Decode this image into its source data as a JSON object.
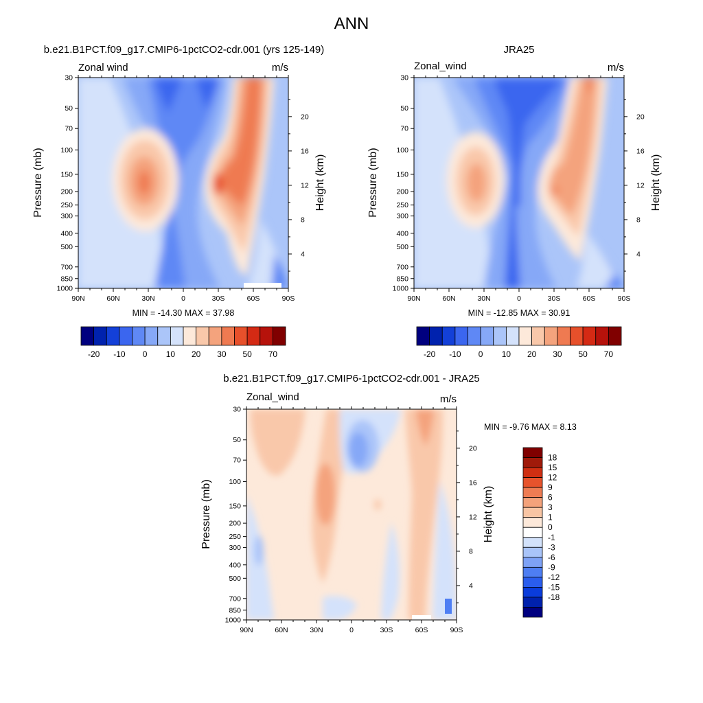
{
  "figure": {
    "title": "ANN"
  },
  "colors": {
    "full_palette": [
      "#00007f",
      "#0022ae",
      "#1340d8",
      "#3b66ef",
      "#5f88f5",
      "#86a8f7",
      "#abc5f9",
      "#d4e2fb",
      "#fde9da",
      "#f9c8aa",
      "#f4a37d",
      "#ef7a51",
      "#e7502b",
      "#d42a14",
      "#b6120b",
      "#800000"
    ],
    "diff_palette": [
      "#000080",
      "#0021ad",
      "#0a3cdb",
      "#2a5ded",
      "#4e7ef3",
      "#7ea2f6",
      "#a9c4f9",
      "#d3e2fb",
      "#ffffff",
      "#fde9da",
      "#f8c5a4",
      "#f3a27b",
      "#ee7c53",
      "#e7532c",
      "#cf2f12",
      "#a01a0a",
      "#800000"
    ]
  },
  "chart_data": [
    {
      "type": "heatmap",
      "title": "b.e21.B1PCT.f09_g17.CMIP6-1pctCO2-cdr.001 (yrs 125-149)",
      "variable_label": "Zonal wind",
      "units": "m/s",
      "xlabel": "",
      "ylabel": "Pressure (mb)",
      "ylabel_right": "Height (km)",
      "x_ticks": [
        "90N",
        "60N",
        "30N",
        "0",
        "30S",
        "60S",
        "90S"
      ],
      "x_tick_values": [
        90,
        60,
        30,
        0,
        -30,
        -60,
        -90
      ],
      "y_ticks": [
        "30",
        "50",
        "70",
        "100",
        "150",
        "200",
        "250",
        "300",
        "400",
        "500",
        "700",
        "850",
        "1000"
      ],
      "y_tick_values": [
        30,
        50,
        70,
        100,
        150,
        200,
        250,
        300,
        400,
        500,
        700,
        850,
        1000
      ],
      "height_ticks": [
        "20",
        "16",
        "12",
        "8",
        "4"
      ],
      "height_tick_values": [
        20,
        16,
        12,
        8,
        4
      ],
      "ylim": [
        1000,
        30
      ],
      "xlim": [
        90,
        -90
      ],
      "min_max_text": "MIN = -14.30  MAX =  37.98",
      "min": -14.3,
      "max": 37.98,
      "colorbar_labels": [
        "-20",
        "-10",
        "0",
        "10",
        "20",
        "30",
        "50",
        "70"
      ],
      "colorbar_orientation": "horizontal"
    },
    {
      "type": "heatmap",
      "title": "JRA25",
      "variable_label": "Zonal_wind",
      "units": "m/s",
      "xlabel": "",
      "ylabel": "Pressure (mb)",
      "ylabel_right": "Height (km)",
      "x_ticks": [
        "90N",
        "60N",
        "30N",
        "0",
        "30S",
        "60S",
        "90S"
      ],
      "x_tick_values": [
        90,
        60,
        30,
        0,
        -30,
        -60,
        -90
      ],
      "y_ticks": [
        "30",
        "50",
        "70",
        "100",
        "150",
        "200",
        "250",
        "300",
        "400",
        "500",
        "700",
        "850",
        "1000"
      ],
      "y_tick_values": [
        30,
        50,
        70,
        100,
        150,
        200,
        250,
        300,
        400,
        500,
        700,
        850,
        1000
      ],
      "height_ticks": [
        "20",
        "16",
        "12",
        "8",
        "4"
      ],
      "height_tick_values": [
        20,
        16,
        12,
        8,
        4
      ],
      "ylim": [
        1000,
        30
      ],
      "xlim": [
        90,
        -90
      ],
      "min_max_text": "MIN = -12.85  MAX =  30.91",
      "min": -12.85,
      "max": 30.91,
      "colorbar_labels": [
        "-20",
        "-10",
        "0",
        "10",
        "20",
        "30",
        "50",
        "70"
      ],
      "colorbar_orientation": "horizontal"
    },
    {
      "type": "heatmap",
      "title": "b.e21.B1PCT.f09_g17.CMIP6-1pctCO2-cdr.001 - JRA25",
      "variable_label": "Zonal_wind",
      "units": "m/s",
      "xlabel": "",
      "ylabel": "Pressure (mb)",
      "ylabel_right": "Height (km)",
      "x_ticks": [
        "90N",
        "60N",
        "30N",
        "0",
        "30S",
        "60S",
        "90S"
      ],
      "x_tick_values": [
        90,
        60,
        30,
        0,
        -30,
        -60,
        -90
      ],
      "y_ticks": [
        "30",
        "50",
        "70",
        "100",
        "150",
        "200",
        "250",
        "300",
        "400",
        "500",
        "700",
        "850",
        "1000"
      ],
      "y_tick_values": [
        30,
        50,
        70,
        100,
        150,
        200,
        250,
        300,
        400,
        500,
        700,
        850,
        1000
      ],
      "height_ticks": [
        "20",
        "16",
        "12",
        "8",
        "4"
      ],
      "height_tick_values": [
        20,
        16,
        12,
        8,
        4
      ],
      "ylim": [
        1000,
        30
      ],
      "xlim": [
        90,
        -90
      ],
      "min_max_text": "MIN =  -9.76  MAX =   8.13",
      "min": -9.76,
      "max": 8.13,
      "colorbar_labels": [
        "18",
        "15",
        "12",
        "9",
        "6",
        "3",
        "1",
        "0",
        "-1",
        "-3",
        "-6",
        "-9",
        "-12",
        "-15",
        "-18"
      ],
      "colorbar_orientation": "vertical"
    }
  ]
}
